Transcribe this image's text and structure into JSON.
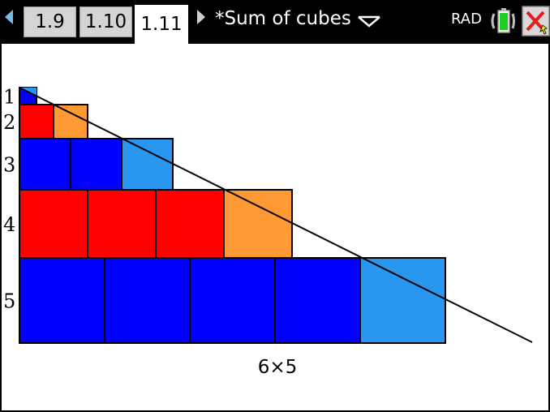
{
  "tabs": [
    {
      "label": "1.9",
      "active": false
    },
    {
      "label": "1.10",
      "active": false
    },
    {
      "label": "1.11",
      "active": true
    }
  ],
  "document": {
    "title": "*Sum of cubes"
  },
  "status": {
    "angle_mode": "RAD"
  },
  "icons": {
    "nav_left": "left-triangle-arrow",
    "nav_right": "right-triangle-arrow",
    "title_menu": "chevron-down-icon",
    "battery": "battery-icon",
    "close": "close-icon"
  },
  "colors": {
    "blue": "#0000ff",
    "light_blue": "#2996f0",
    "red": "#ff0000",
    "orange": "#ff9933"
  },
  "figure": {
    "rows": [
      {
        "label": "1",
        "count": 1,
        "color": "blue",
        "highlight": "light_blue"
      },
      {
        "label": "2",
        "count": 2,
        "color": "red",
        "highlight": "orange"
      },
      {
        "label": "3",
        "count": 3,
        "color": "blue",
        "highlight": "light_blue"
      },
      {
        "label": "4",
        "count": 4,
        "color": "red",
        "highlight": "orange"
      },
      {
        "label": "5",
        "count": 5,
        "color": "blue",
        "highlight": "light_blue"
      }
    ],
    "caption": "6×5"
  }
}
